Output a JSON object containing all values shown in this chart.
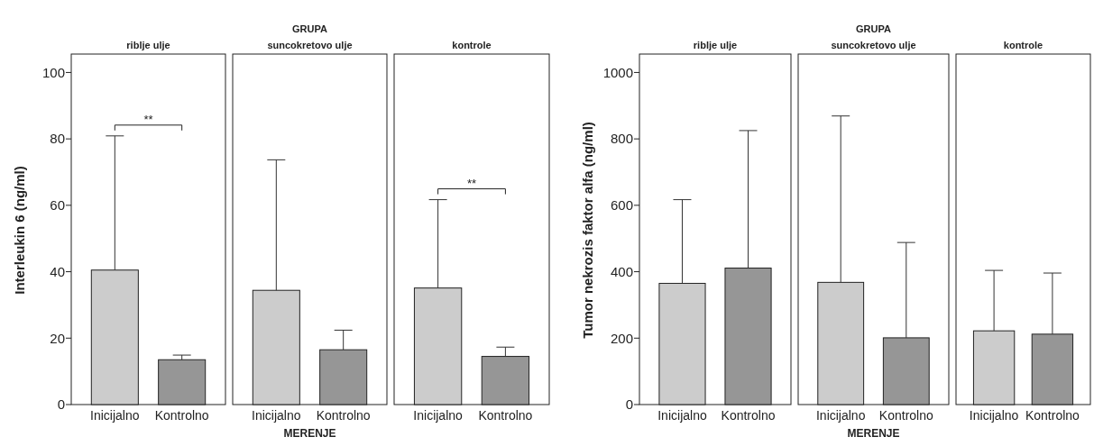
{
  "chart_data": [
    {
      "type": "bar",
      "title": "riblje ulje",
      "ylabel": "Interleukin 6 (ng/ml)",
      "categories": [
        "Inicijalno",
        "Kontrolno"
      ],
      "values": [
        40.5,
        13.5
      ],
      "colors": [
        "#cccccc",
        "#969696"
      ],
      "errors": [
        [
          40.5,
          80.9
        ],
        [
          13.5,
          14.9
        ]
      ],
      "ylim": [
        0,
        105
      ],
      "yticks": [
        0,
        20,
        40,
        60,
        80,
        100
      ],
      "annotations": [
        "**"
      ]
    },
    {
      "type": "bar",
      "title": "GRUPA",
      "subtitle": "suncokretovo ulje",
      "xlabel": "MERENJE",
      "categories": [
        "Inicijalno",
        "Kontrolno"
      ],
      "values": [
        34.4,
        16.5
      ],
      "colors": [
        "#cccccc",
        "#969696"
      ],
      "errors": [
        [
          34.4,
          73.7
        ],
        [
          16.5,
          22.4
        ]
      ],
      "ylim": [
        0,
        105
      ],
      "tick_labels": "x"
    },
    {
      "type": "bar",
      "title": "kontrole",
      "categories": [
        "Inicijalno",
        "Kontrolno"
      ],
      "values": [
        35.1,
        14.5
      ],
      "colors": [
        "#cccccc",
        "#969696"
      ],
      "errors": [
        [
          35.1,
          61.7
        ],
        [
          14.5,
          17.3
        ]
      ],
      "ylim": [
        0,
        105
      ],
      "tick_labels": "x",
      "annotations": [
        "**"
      ]
    },
    {
      "type": "bar",
      "title": "riblje ulje",
      "ylabel": "Tumor nekrozis faktor alfa (ng/ml)",
      "categories": [
        "Inicijalno",
        "Kontrolno"
      ],
      "values": [
        365,
        411
      ],
      "colors": [
        "#cccccc",
        "#969696"
      ],
      "errors": [
        [
          365,
          617
        ],
        [
          411,
          825
        ]
      ],
      "ylim": [
        0,
        1050
      ],
      "yticks": [
        0,
        200,
        400,
        600,
        800,
        1000
      ]
    },
    {
      "type": "bar",
      "title": "GRUPA",
      "subtitle": "suncokretovo ulje",
      "xlabel": "MERENJE",
      "categories": [
        "Inicijalno",
        "Kontrolno"
      ],
      "values": [
        368,
        201
      ],
      "colors": [
        "#cccccc",
        "#969696"
      ],
      "errors": [
        [
          368,
          869
        ],
        [
          201,
          488
        ]
      ],
      "ylim": [
        0,
        1050
      ],
      "tick_labels": "x"
    },
    {
      "type": "bar",
      "title": "kontrole",
      "categories": [
        "Inicijalno",
        "Kontrolno"
      ],
      "values": [
        222,
        212
      ],
      "colors": [
        "#cccccc",
        "#969696"
      ],
      "errors": [
        [
          222,
          404
        ],
        [
          212,
          396
        ]
      ],
      "ylim": [
        0,
        1050
      ],
      "tick_labels": "x"
    }
  ]
}
